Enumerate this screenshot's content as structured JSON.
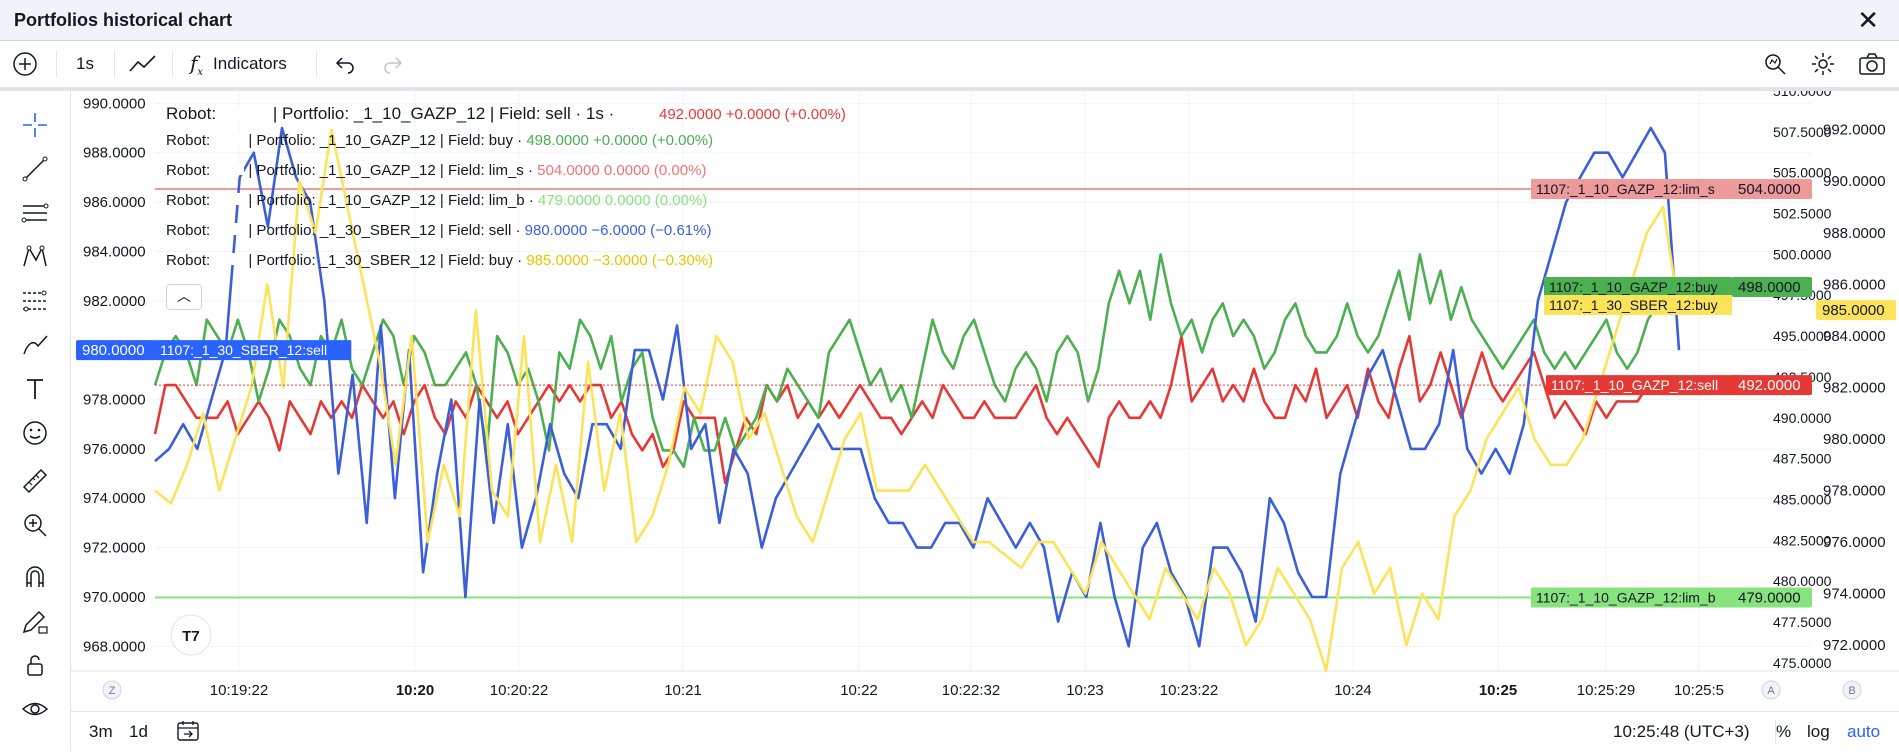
{
  "window": {
    "title": "Portfolios historical chart"
  },
  "toolbar": {
    "interval": "1s",
    "indicators_label": "Indicators"
  },
  "bottom": {
    "range_3m": "3m",
    "range_1d": "1d",
    "clock": "10:25:48 (UTC+3)",
    "pct": "%",
    "log": "log",
    "auto": "auto"
  },
  "axis_buttons": {
    "z": "Z",
    "a": "A",
    "b": "B"
  },
  "colors": {
    "red": "#e53935",
    "green": "#4caf50",
    "blue": "#3a5fd9",
    "yellow": "#fbe35a",
    "lim_s": "#ef9a9a",
    "lim_b": "#86e37e"
  },
  "legend": {
    "main": {
      "robot": "Robot:",
      "text": "| Portfolio: _1_10_GAZP_12 | Field: sell · 1s ·",
      "value": "492.0000 +0.0000 (+0.00%)"
    },
    "rows": [
      {
        "robot": "Robot:",
        "text": "| Portfolio: _1_10_GAZP_12 | Field: buy ·",
        "value": "498.0000 +0.0000 (+0.00%)",
        "color": "#4caf50"
      },
      {
        "robot": "Robot:",
        "text": "| Portfolio: _1_10_GAZP_12 | Field: lim_s ·",
        "value": "504.0000 0.0000 (0.00%)",
        "color": "#ef7373"
      },
      {
        "robot": "Robot:",
        "text": "| Portfolio: _1_10_GAZP_12 | Field: lim_b ·",
        "value": "479.0000 0.0000 (0.00%)",
        "color": "#86e37e"
      },
      {
        "robot": "Robot:",
        "text": "| Portfolio: _1_30_SBER_12 | Field: sell ·",
        "value": "980.0000 −6.0000 (−0.61%)",
        "color": "#3a5fd9"
      },
      {
        "robot": "Robot:",
        "text": "| Portfolio: _1_30_SBER_12 | Field: buy ·",
        "value": "985.0000 −3.0000 (−0.30%)",
        "color": "#e8c400"
      }
    ]
  },
  "chart_data": {
    "type": "line",
    "x_labels": [
      "10:19:22",
      "10:20",
      "10:20:22",
      "10:21",
      "10:22",
      "10:22:32",
      "10:23",
      "10:23:22",
      "10:24",
      "10:25",
      "10:25:29",
      "10:25:5"
    ],
    "x_labels_bold": [
      "10:20",
      "10:25"
    ],
    "left_axis": {
      "ticks": [
        "990.0000",
        "988.0000",
        "986.0000",
        "984.0000",
        "982.0000",
        "980.0000",
        "978.0000",
        "976.0000",
        "974.0000",
        "972.0000",
        "970.0000",
        "968.0000"
      ],
      "ylim": [
        967,
        990.5
      ]
    },
    "mid_axis": {
      "ticks": [
        "510.0000",
        "507.5000",
        "505.0000",
        "502.5000",
        "500.0000",
        "497.5000",
        "495.0000",
        "492.5000",
        "490.0000",
        "487.5000",
        "485.0000",
        "482.5000",
        "480.0000",
        "477.5000",
        "475.0000"
      ],
      "ylim": [
        474.5,
        510
      ]
    },
    "right_axis": {
      "ticks": [
        "992.0000",
        "990.0000",
        "988.0000",
        "986.0000",
        "984.0000",
        "982.0000",
        "980.0000",
        "978.0000",
        "976.0000",
        "974.0000",
        "972.0000"
      ],
      "ylim": [
        971,
        993.5
      ]
    },
    "horizontal_lines": [
      {
        "name": "1107:_1_10_GAZP_12:lim_s",
        "value": 504,
        "price_label": "504.0000",
        "color": "#ef9a9a"
      },
      {
        "name": "1107:_1_10_GAZP_12:lim_b",
        "value": 479,
        "price_label": "479.0000",
        "color": "#86e37e"
      }
    ],
    "series": [
      {
        "name": "1107:_1_10_GAZP_12:sell",
        "axis": "mid",
        "color": "#e53935",
        "price_label": "492.0000",
        "values": [
          489,
          492,
          492,
          491,
          490,
          490,
          490,
          491,
          489,
          490,
          491,
          490,
          488,
          491,
          490,
          489,
          491,
          490,
          491,
          490,
          492,
          491,
          490,
          491,
          489,
          491,
          492,
          490,
          489,
          491,
          490,
          492,
          491,
          490,
          491,
          489,
          490,
          491,
          492,
          491,
          492,
          491,
          492,
          492,
          490,
          491,
          489,
          488,
          489,
          487,
          488,
          491,
          490,
          490,
          490,
          486,
          488,
          490,
          489,
          492,
          491,
          492,
          490,
          491,
          490,
          491,
          490,
          491,
          492,
          491,
          490,
          490,
          489,
          490,
          491,
          490,
          492,
          491,
          490,
          490,
          491,
          490,
          490,
          490,
          491,
          492,
          490,
          489,
          490,
          489,
          488,
          487,
          490,
          491,
          490,
          490,
          491,
          490,
          492,
          495,
          491,
          492,
          493,
          491,
          492,
          491,
          493,
          491,
          490,
          490,
          492,
          491,
          493,
          490,
          491,
          492,
          490,
          493,
          491,
          490,
          493,
          495,
          491,
          492,
          494,
          492,
          490,
          492,
          494,
          492,
          491,
          492,
          493,
          494,
          492,
          490,
          491,
          490,
          489,
          491,
          490,
          491,
          491,
          491,
          492,
          492,
          492,
          492
        ]
      },
      {
        "name": "1107:_1_10_GAZP_12:buy",
        "axis": "mid",
        "color": "#4caf50",
        "price_label": "498.0000",
        "values": [
          492,
          494,
          495,
          494,
          492,
          496,
          495,
          494,
          496,
          494,
          491,
          493,
          496,
          495,
          493,
          492,
          495,
          494,
          496,
          493,
          492,
          494,
          496,
          495,
          492,
          495,
          494,
          492,
          492,
          493,
          494,
          492,
          488,
          495,
          494,
          492,
          493,
          491,
          488,
          494,
          493,
          496,
          495,
          493,
          495,
          491,
          493,
          494,
          490,
          488,
          488,
          487,
          490,
          488,
          488,
          490,
          488,
          489,
          490,
          492,
          491,
          493,
          492,
          491,
          490,
          494,
          495,
          496,
          494,
          492,
          493,
          491,
          492,
          490,
          493,
          496,
          494,
          493,
          495,
          496,
          494,
          492,
          491,
          493,
          494,
          493,
          491,
          494,
          495,
          494,
          491,
          493,
          497,
          499,
          497,
          499,
          496,
          500,
          497,
          495,
          496,
          494,
          496,
          497,
          495,
          496,
          495,
          493,
          494,
          496,
          497,
          495,
          494,
          494,
          495,
          497,
          495,
          494,
          495,
          497,
          499,
          496,
          500,
          497,
          499,
          496,
          498,
          496,
          495,
          494,
          493,
          494,
          495,
          496,
          494,
          493,
          494,
          493,
          494,
          495,
          496,
          494,
          493,
          494,
          496,
          497,
          498,
          498
        ]
      },
      {
        "name": "1107:_1_30_SBER_12:sell",
        "axis": "left",
        "color": "#3a5fd9",
        "price_label": "980.0000",
        "values": [
          975.5,
          976,
          977,
          976,
          978,
          980,
          987,
          988,
          985,
          989,
          987,
          986,
          982,
          975,
          979,
          973,
          981,
          974,
          980,
          971,
          975,
          978,
          970,
          978,
          973,
          977,
          972,
          974,
          977,
          975,
          974,
          977,
          977,
          976,
          980,
          980,
          978,
          981,
          976,
          977,
          973,
          976,
          975,
          972,
          974,
          975,
          976,
          977,
          976,
          976,
          976,
          974,
          973,
          973,
          972,
          972,
          973,
          973,
          972,
          974,
          973,
          972,
          973,
          972,
          969,
          971,
          970,
          973,
          970,
          968,
          972,
          973,
          971,
          970,
          968,
          972,
          972,
          971,
          969,
          974,
          973,
          971,
          970,
          970,
          975,
          977,
          979,
          980,
          978,
          976,
          976,
          977,
          980,
          976,
          975,
          976,
          975,
          977,
          982,
          984,
          986,
          987,
          988,
          988,
          987,
          988,
          989,
          988,
          980
        ]
      },
      {
        "name": "1107:_1_30_SBER_12:buy",
        "axis": "right",
        "color": "#fbe35a",
        "price_label": "985.0000",
        "values": [
          978,
          977.5,
          979,
          981,
          978,
          980,
          982,
          986,
          982,
          990,
          988,
          992,
          989,
          986,
          983,
          979,
          984,
          976,
          979,
          977,
          985,
          978,
          977,
          984,
          976,
          979,
          976,
          983,
          978,
          981,
          976,
          977,
          979,
          982,
          981,
          984,
          983,
          980,
          981,
          979,
          977,
          976,
          978,
          980,
          981,
          978,
          978,
          978,
          979,
          978,
          977,
          976,
          976,
          975.5,
          975,
          976,
          976,
          975,
          974,
          976,
          975,
          974,
          973,
          975,
          974,
          973,
          975,
          974,
          972,
          973,
          975,
          974,
          973,
          971,
          975,
          976,
          974,
          975,
          972,
          974,
          973,
          977,
          978,
          980,
          981,
          982,
          980,
          979,
          979,
          980,
          982,
          984,
          986,
          988,
          989,
          985
        ]
      }
    ]
  }
}
